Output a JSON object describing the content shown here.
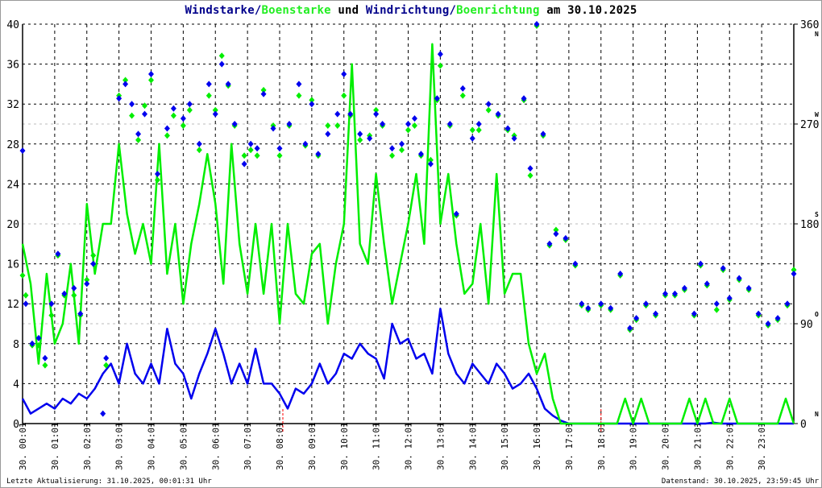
{
  "title": {
    "part1": "Windstarke",
    "sep1": "/",
    "part2": "Boenstarke",
    "mid": " und ",
    "part3": "Windrichtung",
    "sep2": "/",
    "part4": "Boenrichtung",
    "suffix": " am 30.10.2025"
  },
  "footer": {
    "last_update": "Letzte Aktualisierung: 31.10.2025, 00:01:31 Uhr",
    "data_state": "Datenstand: 30.10.2025, 23:59:45 Uhr"
  },
  "colors": {
    "wind": "#0000ee",
    "gust": "#00ee00",
    "grid": "#000000",
    "grid_dir": "#bbbbbb",
    "marker": "#ff0000"
  },
  "chart_data": {
    "type": "line",
    "title": "Windstarke/Boenstarke und Windrichtung/Boenrichtung am 30.10.2025",
    "x_unit": "hour",
    "xlim": [
      0,
      24
    ],
    "x_tick_labels": [
      "30. 00:01",
      "30. 01:01",
      "30. 02:01",
      "30. 03:01",
      "30. 04:01",
      "30. 05:01",
      "30. 06:01",
      "30. 07:01",
      "30. 08:01",
      "30. 09:01",
      "30. 10:01",
      "30. 11:01",
      "30. 12:01",
      "30. 13:01",
      "30. 14:01",
      "30. 15:01",
      "30. 16:01",
      "30. 17:01",
      "30. 18:01",
      "30. 19:01",
      "30. 20:01",
      "30. 21:01",
      "30. 22:01",
      "30. 23:01"
    ],
    "y_left": {
      "ylim": [
        0,
        40
      ],
      "ticks": [
        "0",
        "4",
        "8",
        "12",
        "16",
        "20",
        "24",
        "28",
        "32",
        "36",
        "40"
      ]
    },
    "y_right": {
      "ylim": [
        0,
        360
      ],
      "ticks": [
        {
          "v": 0,
          "label": "0",
          "dir": "N"
        },
        {
          "v": 90,
          "label": "90",
          "dir": "O"
        },
        {
          "v": 180,
          "label": "180",
          "dir": "S"
        },
        {
          "v": 270,
          "label": "270",
          "dir": "W"
        },
        {
          "v": 360,
          "label": "360",
          "dir": "N"
        }
      ]
    },
    "markers_hours": [
      8.1,
      18.0
    ],
    "series": [
      {
        "name": "Windstarke",
        "type": "line",
        "color": "#0000ee",
        "step_hours": 0.25,
        "values": [
          2.5,
          1,
          1.5,
          2,
          1.5,
          2.5,
          2,
          3,
          2.5,
          3.5,
          5,
          6,
          4,
          8,
          5,
          4,
          6,
          4,
          9.5,
          6,
          5,
          2.5,
          5,
          7,
          9.5,
          7,
          4,
          6,
          4,
          7.5,
          4,
          4,
          3,
          1.5,
          3.5,
          3,
          4,
          6,
          4,
          5,
          7,
          6.5,
          8,
          7,
          6.5,
          4.5,
          10,
          8,
          8.5,
          6.5,
          7,
          5,
          11.5,
          7,
          5,
          4,
          6,
          5,
          4,
          6,
          5,
          3.5,
          4,
          5,
          3.5,
          1.5,
          0.8,
          0.3,
          0,
          0,
          0,
          0,
          0,
          0,
          0,
          0,
          0,
          0,
          0,
          0,
          0,
          0,
          0,
          0,
          0,
          0,
          0.1,
          0,
          0,
          0,
          0,
          0,
          0,
          0,
          0,
          0,
          0
        ]
      },
      {
        "name": "Boenstarke",
        "type": "line",
        "color": "#00ee00",
        "step_hours": 0.25,
        "values": [
          18,
          14,
          6,
          15,
          8,
          10,
          16,
          8,
          22,
          15,
          20,
          20,
          28,
          21,
          17,
          20,
          16,
          28,
          15,
          20,
          12,
          18,
          22,
          27,
          22,
          14,
          28,
          18,
          13,
          20,
          13,
          20,
          10,
          20,
          13,
          12,
          17,
          18,
          10,
          16,
          20,
          36,
          18,
          16,
          25,
          18,
          12,
          16,
          20,
          25,
          18,
          38,
          20,
          25,
          18,
          13,
          14,
          20,
          12,
          25,
          13,
          15,
          15,
          8,
          5,
          7,
          2.5,
          0,
          0,
          0,
          0,
          0,
          0,
          0,
          0,
          2.5,
          0,
          2.5,
          0,
          0,
          0,
          0,
          0,
          2.5,
          0,
          2.5,
          0,
          0,
          2.5,
          0,
          0,
          0,
          0,
          0,
          0,
          2.5,
          0
        ]
      },
      {
        "name": "Windrichtung",
        "type": "scatter",
        "color": "#0000ee",
        "unit": "deg",
        "hours": [
          0,
          0.1,
          0.3,
          0.5,
          0.7,
          0.9,
          1.1,
          1.3,
          1.6,
          1.8,
          2.0,
          2.2,
          2.5,
          2.6,
          3.0,
          3.2,
          3.4,
          3.6,
          3.8,
          4.0,
          4.2,
          4.5,
          4.7,
          5.0,
          5.2,
          5.5,
          5.8,
          6.0,
          6.2,
          6.4,
          6.6,
          6.9,
          7.1,
          7.3,
          7.5,
          7.8,
          8.0,
          8.3,
          8.6,
          8.8,
          9.0,
          9.2,
          9.5,
          9.8,
          10.0,
          10.2,
          10.5,
          10.8,
          11.0,
          11.2,
          11.5,
          11.8,
          12.0,
          12.2,
          12.4,
          12.7,
          12.9,
          13.0,
          13.3,
          13.5,
          13.7,
          14.0,
          14.2,
          14.5,
          14.8,
          15.1,
          15.3,
          15.6,
          15.8,
          16.0,
          16.2,
          16.4,
          16.6,
          16.9,
          17.2,
          17.4,
          17.6,
          18.0,
          18.3,
          18.6,
          18.9,
          19.1,
          19.4,
          19.7,
          20.0,
          20.3,
          20.6,
          20.9,
          21.1,
          21.3,
          21.6,
          21.8,
          22.0,
          22.3,
          22.6,
          22.9,
          23.2,
          23.5,
          23.8,
          24.0
        ],
        "values": [
          246,
          108,
          72,
          77,
          59,
          108,
          153,
          117,
          122,
          99,
          126,
          144,
          9,
          59,
          293,
          306,
          288,
          261,
          279,
          315,
          225,
          266,
          284,
          275,
          288,
          252,
          306,
          279,
          324,
          306,
          270,
          234,
          252,
          248,
          297,
          266,
          248,
          270,
          306,
          252,
          288,
          243,
          261,
          279,
          315,
          279,
          261,
          257,
          279,
          270,
          248,
          252,
          270,
          275,
          243,
          234,
          293,
          333,
          270,
          189,
          302,
          257,
          270,
          288,
          279,
          266,
          257,
          293,
          230,
          360,
          261,
          162,
          171,
          167,
          144,
          108,
          104,
          108,
          104,
          135,
          86,
          95,
          108,
          99,
          117,
          117,
          122,
          99,
          144,
          126,
          108,
          140,
          113,
          131,
          122,
          99,
          90,
          95,
          108,
          135
        ]
      },
      {
        "name": "Boenrichtung",
        "type": "scatter",
        "color": "#00ee00",
        "unit": "deg",
        "hours": [
          0,
          0.1,
          0.3,
          0.5,
          0.7,
          0.9,
          1.1,
          1.3,
          1.6,
          1.8,
          2.0,
          2.2,
          2.6,
          3.0,
          3.2,
          3.4,
          3.6,
          3.8,
          4.0,
          4.2,
          4.5,
          4.7,
          5.0,
          5.2,
          5.5,
          5.8,
          6.0,
          6.2,
          6.4,
          6.6,
          6.9,
          7.1,
          7.3,
          7.5,
          7.8,
          8.0,
          8.3,
          8.6,
          8.8,
          9.0,
          9.2,
          9.5,
          9.8,
          10.0,
          10.2,
          10.5,
          10.8,
          11.0,
          11.2,
          11.5,
          11.8,
          12.0,
          12.2,
          12.4,
          12.7,
          12.9,
          13.0,
          13.3,
          13.5,
          13.7,
          14.0,
          14.2,
          14.5,
          14.8,
          15.1,
          15.3,
          15.6,
          15.8,
          16.0,
          16.2,
          16.4,
          16.6,
          16.9,
          17.2,
          17.4,
          17.6,
          18.0,
          18.3,
          18.6,
          18.9,
          19.1,
          19.4,
          19.7,
          20.0,
          20.3,
          20.6,
          20.9,
          21.1,
          21.3,
          21.6,
          21.8,
          22.0,
          22.3,
          22.6,
          22.9,
          23.2,
          23.5,
          23.8,
          24.0
        ],
        "values": [
          135,
          117,
          72,
          72,
          54,
          99,
          153,
          117,
          117,
          99,
          131,
          153,
          54,
          297,
          311,
          279,
          257,
          288,
          311,
          221,
          261,
          279,
          270,
          284,
          248,
          297,
          284,
          333,
          306,
          270,
          243,
          248,
          243,
          302,
          270,
          243,
          270,
          297,
          252,
          293,
          243,
          270,
          270,
          297,
          279,
          257,
          261,
          284,
          270,
          243,
          248,
          266,
          270,
          243,
          239,
          293,
          324,
          270,
          189,
          297,
          266,
          266,
          284,
          279,
          266,
          261,
          293,
          225,
          360,
          261,
          162,
          176,
          167,
          144,
          108,
          104,
          108,
          104,
          135,
          86,
          95,
          108,
          99,
          117,
          117,
          122,
          99,
          144,
          126,
          104,
          140,
          113,
          131,
          122,
          99,
          90,
          95,
          108,
          140
        ]
      }
    ]
  }
}
